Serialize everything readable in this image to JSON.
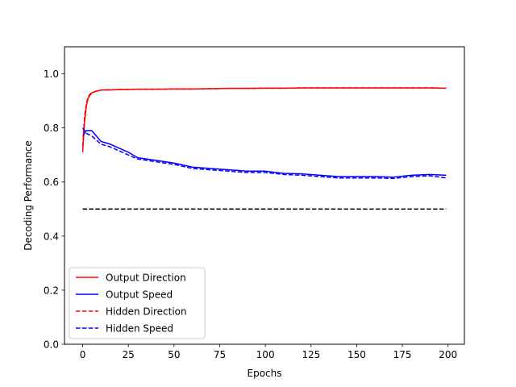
{
  "chart_data": {
    "type": "line",
    "title": "",
    "xlabel": "Epochs",
    "ylabel": "Decoding Performance",
    "xlim": [
      -9.95,
      208.95
    ],
    "ylim": [
      0.0,
      1.1
    ],
    "xticks": [
      0,
      25,
      50,
      75,
      100,
      125,
      150,
      175,
      200
    ],
    "yticks": [
      0.0,
      0.2,
      0.4,
      0.6,
      0.8,
      1.0
    ],
    "xtick_labels": [
      "0",
      "25",
      "50",
      "75",
      "100",
      "125",
      "150",
      "175",
      "200"
    ],
    "ytick_labels": [
      "0.0",
      "0.2",
      "0.4",
      "0.6",
      "0.8",
      "1.0"
    ],
    "grid": false,
    "legend_position": "lower-left",
    "series": [
      {
        "name": "Output Direction",
        "color": "#ff0000",
        "style": "solid",
        "x": [
          0,
          1,
          2,
          3,
          4,
          5,
          7,
          10,
          15,
          20,
          25,
          30,
          40,
          50,
          60,
          70,
          80,
          90,
          100,
          110,
          120,
          130,
          140,
          150,
          160,
          170,
          180,
          190,
          199
        ],
        "y": [
          0.71,
          0.82,
          0.88,
          0.91,
          0.92,
          0.93,
          0.935,
          0.94,
          0.94,
          0.942,
          0.942,
          0.943,
          0.943,
          0.944,
          0.944,
          0.945,
          0.946,
          0.946,
          0.947,
          0.947,
          0.948,
          0.948,
          0.948,
          0.948,
          0.948,
          0.948,
          0.948,
          0.948,
          0.947
        ]
      },
      {
        "name": "Output Speed",
        "color": "#0000ff",
        "style": "solid",
        "x": [
          0,
          2,
          5,
          10,
          15,
          20,
          25,
          30,
          40,
          50,
          60,
          70,
          80,
          90,
          100,
          110,
          120,
          130,
          140,
          150,
          160,
          170,
          180,
          190,
          199
        ],
        "y": [
          0.77,
          0.79,
          0.79,
          0.75,
          0.74,
          0.725,
          0.71,
          0.69,
          0.68,
          0.67,
          0.655,
          0.65,
          0.645,
          0.64,
          0.64,
          0.632,
          0.63,
          0.625,
          0.62,
          0.62,
          0.62,
          0.618,
          0.625,
          0.628,
          0.625
        ]
      },
      {
        "name": "Hidden Direction",
        "color": "#ff0000",
        "style": "dashed",
        "x": [
          0,
          1,
          2,
          3,
          4,
          5,
          7,
          10,
          15,
          20,
          25,
          30,
          40,
          50,
          60,
          70,
          80,
          90,
          100,
          110,
          120,
          130,
          140,
          150,
          160,
          170,
          180,
          190,
          199
        ],
        "y": [
          0.73,
          0.84,
          0.89,
          0.915,
          0.925,
          0.93,
          0.935,
          0.94,
          0.941,
          0.942,
          0.942,
          0.943,
          0.943,
          0.944,
          0.944,
          0.945,
          0.946,
          0.946,
          0.947,
          0.947,
          0.948,
          0.948,
          0.948,
          0.948,
          0.948,
          0.948,
          0.948,
          0.948,
          0.947
        ]
      },
      {
        "name": "Hidden Speed",
        "color": "#0000ff",
        "style": "dashed",
        "x": [
          0,
          2,
          5,
          10,
          15,
          20,
          25,
          30,
          40,
          50,
          60,
          70,
          80,
          90,
          100,
          110,
          120,
          130,
          140,
          150,
          160,
          170,
          180,
          190,
          199
        ],
        "y": [
          0.8,
          0.78,
          0.77,
          0.74,
          0.73,
          0.715,
          0.7,
          0.685,
          0.675,
          0.665,
          0.65,
          0.645,
          0.64,
          0.635,
          0.635,
          0.628,
          0.625,
          0.62,
          0.615,
          0.615,
          0.615,
          0.613,
          0.62,
          0.623,
          0.615
        ]
      },
      {
        "name": "",
        "color": "#000000",
        "style": "dashed",
        "x": [
          0,
          199
        ],
        "y": [
          0.5,
          0.5
        ]
      }
    ]
  }
}
